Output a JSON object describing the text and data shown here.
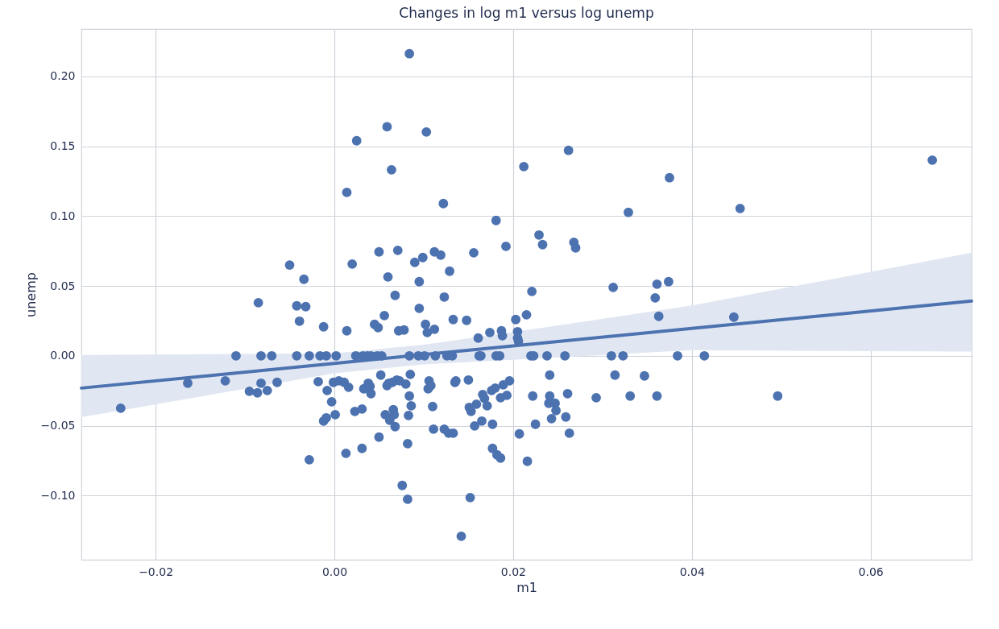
{
  "chart_data": {
    "type": "scatter",
    "title": "Changes in log m1 versus log unemp",
    "xlabel": "m1",
    "ylabel": "unemp",
    "xlim": [
      -0.0283,
      0.0713
    ],
    "ylim": [
      -0.146,
      0.234
    ],
    "xticks": [
      {
        "value": -0.02,
        "label": "−0.02"
      },
      {
        "value": 0,
        "label": "0.00"
      },
      {
        "value": 0.02,
        "label": "0.02"
      },
      {
        "value": 0.04,
        "label": "0.04"
      },
      {
        "value": 0.06,
        "label": "0.06"
      }
    ],
    "yticks": [
      {
        "value": -0.1,
        "label": "−0.10"
      },
      {
        "value": -0.05,
        "label": "−0.05"
      },
      {
        "value": 0,
        "label": "0.00"
      },
      {
        "value": 0.05,
        "label": "0.05"
      },
      {
        "value": 0.1,
        "label": "0.10"
      },
      {
        "value": 0.15,
        "label": "0.15"
      },
      {
        "value": 0.2,
        "label": "0.20"
      }
    ],
    "grid": true,
    "series": [
      {
        "type": "line",
        "color": "#4c72b0",
        "x": [
          -0.0283,
          0.0,
          0.01,
          0.02,
          0.04,
          0.0713
        ],
        "values": [
          -0.0231,
          -0.0054,
          0.0009,
          0.0071,
          0.0196,
          0.0392
        ],
        "lower": [
          -0.044,
          -0.0125,
          -0.0062,
          -0.0028,
          0.004,
          0.003
        ],
        "upper": [
          0.0006,
          0.0018,
          0.0079,
          0.017,
          0.036,
          0.0738
        ]
      },
      {
        "color": "#4c72b0",
        "marker": "circle",
        "x": [
          -0.0239,
          -0.0164,
          -0.0122,
          -0.011,
          -0.0095,
          -0.0086,
          -0.0085,
          -0.0082,
          -0.0082,
          -0.0075,
          -0.007,
          -0.0064,
          -0.005,
          -0.0042,
          -0.0042,
          -0.0039,
          -0.0034,
          -0.0032,
          -0.0028,
          -0.0028,
          -0.0018,
          -0.0016,
          -0.0012,
          -0.0012,
          -0.0009,
          -0.0009,
          -0.0008,
          -0.0003,
          -0.0001,
          0.0001,
          0.0002,
          0.0005,
          0.0011,
          0.0013,
          0.0014,
          0.0014,
          0.0016,
          0.002,
          0.0023,
          0.0024,
          0.0025,
          0.0031,
          0.0031,
          0.0032,
          0.0033,
          0.0037,
          0.0038,
          0.004,
          0.0041,
          0.0041,
          0.0045,
          0.0048,
          0.0049,
          0.005,
          0.005,
          0.0052,
          0.0053,
          0.0056,
          0.0057,
          0.0059,
          0.0059,
          0.006,
          0.0061,
          0.0062,
          0.0064,
          0.0065,
          0.0066,
          0.0067,
          0.0068,
          0.0068,
          0.007,
          0.0071,
          0.0072,
          0.0073,
          0.0076,
          0.0078,
          0.008,
          0.0082,
          0.0083,
          0.0084,
          0.0084,
          0.0084,
          0.0085,
          0.0086,
          0.0082,
          0.009,
          0.0094,
          0.0095,
          0.0095,
          0.0099,
          0.0101,
          0.0102,
          0.0103,
          0.0104,
          0.0105,
          0.0106,
          0.0108,
          0.011,
          0.0111,
          0.0112,
          0.0112,
          0.0113,
          0.0119,
          0.0122,
          0.0123,
          0.0123,
          0.0126,
          0.0128,
          0.0129,
          0.0132,
          0.0133,
          0.0133,
          0.0135,
          0.0136,
          0.0142,
          0.0148,
          0.015,
          0.0151,
          0.0152,
          0.0153,
          0.0156,
          0.0157,
          0.0159,
          0.0161,
          0.0162,
          0.0164,
          0.0165,
          0.0166,
          0.0168,
          0.0171,
          0.0174,
          0.0176,
          0.0177,
          0.0177,
          0.018,
          0.0181,
          0.0181,
          0.0182,
          0.0185,
          0.0186,
          0.0186,
          0.0187,
          0.0188,
          0.0189,
          0.0192,
          0.0193,
          0.0196,
          0.0203,
          0.0205,
          0.0205,
          0.0206,
          0.0207,
          0.0212,
          0.0215,
          0.0216,
          0.022,
          0.0221,
          0.0222,
          0.0223,
          0.0225,
          0.0229,
          0.0233,
          0.0238,
          0.024,
          0.0241,
          0.0241,
          0.0243,
          0.0247,
          0.0248,
          0.0258,
          0.0259,
          0.0261,
          0.0262,
          0.0263,
          0.0268,
          0.027,
          0.0293,
          0.031,
          0.0312,
          0.0314,
          0.0323,
          0.0329,
          0.0331,
          0.0347,
          0.0359,
          0.0361,
          0.0361,
          0.0363,
          0.0374,
          0.0375,
          0.0384,
          0.0414,
          0.0447,
          0.0454,
          0.0496,
          0.0669
        ],
        "values": [
          -0.0375,
          -0.0196,
          -0.0179,
          0,
          -0.0254,
          -0.0265,
          0.038,
          0,
          -0.0196,
          -0.0248,
          0,
          -0.019,
          0.065,
          0,
          0.0358,
          0.0248,
          0.0548,
          0.0352,
          0,
          -0.0744,
          -0.0185,
          0,
          0.0208,
          -0.0467,
          -0.0444,
          0,
          -0.0248,
          -0.0329,
          -0.019,
          -0.0421,
          0,
          -0.0179,
          -0.019,
          -0.0698,
          0.0179,
          0.117,
          -0.0225,
          0.0657,
          -0.0398,
          0,
          0.154,
          -0.0381,
          -0.0663,
          0,
          -0.0236,
          0,
          -0.0196,
          -0.0219,
          -0.0271,
          0,
          0.0225,
          0,
          0.0202,
          0.0744,
          -0.0582,
          -0.0138,
          0,
          0.0288,
          -0.0421,
          -0.0213,
          0.164,
          0.0565,
          -0.0196,
          -0.0461,
          0.1332,
          -0.019,
          -0.0386,
          -0.0421,
          0.0433,
          -0.0507,
          -0.0173,
          0.0755,
          0.0179,
          -0.0179,
          -0.0928,
          0.0185,
          -0.0202,
          -0.0629,
          -0.0427,
          0,
          0.2163,
          -0.0288,
          -0.0133,
          -0.0358,
          -0.1027,
          0.0669,
          0,
          0.0531,
          0.034,
          0.0704,
          0,
          0.0225,
          0.1603,
          0.0167,
          -0.0236,
          -0.0179,
          -0.0213,
          -0.0363,
          -0.0525,
          0.0744,
          0.019,
          0,
          0.0721,
          0.109,
          0.0421,
          -0.0525,
          0,
          -0.0554,
          0.0606,
          0,
          -0.0554,
          0.026,
          -0.019,
          -0.0179,
          -0.1292,
          0.0254,
          -0.0173,
          -0.0369,
          -0.1015,
          -0.0398,
          0.0738,
          -0.0502,
          -0.0346,
          0.0127,
          0,
          0,
          -0.0467,
          -0.0277,
          -0.0306,
          -0.0358,
          0.0167,
          -0.0248,
          -0.0663,
          -0.049,
          -0.0231,
          0.0969,
          0,
          -0.0709,
          0,
          -0.03,
          -0.0732,
          0.0179,
          0.0144,
          -0.0208,
          0.0784,
          -0.0283,
          -0.0179,
          0.026,
          0.0173,
          0.0127,
          0.0104,
          -0.0559,
          0.1355,
          0.0294,
          -0.0755,
          0,
          0.0461,
          -0.0288,
          0,
          -0.049,
          0.0865,
          0.0796,
          0,
          -0.034,
          -0.0138,
          -0.0288,
          -0.045,
          -0.034,
          -0.0392,
          0,
          -0.0438,
          -0.0271,
          0.1471,
          -0.0554,
          0.0813,
          0.0773,
          -0.03,
          0,
          0.049,
          -0.0138,
          0,
          0.1027,
          -0.0288,
          -0.0144,
          0.0415,
          0.0513,
          -0.0288,
          0.0283,
          0.0531,
          0.1275,
          0,
          0,
          0.0277,
          0.1055,
          -0.0288,
          0.1401
        ]
      }
    ]
  }
}
